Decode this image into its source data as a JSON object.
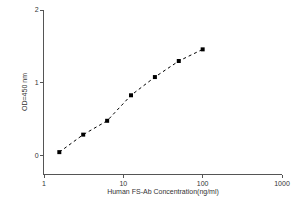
{
  "chart_data": {
    "type": "line",
    "x_label": "Human FS-Ab Concentration(ng/ml)",
    "y_label": "OD=450 nm",
    "x": [
      1.56,
      3.12,
      6.25,
      12.5,
      25,
      50,
      100
    ],
    "values": [
      0.05,
      0.29,
      0.48,
      0.83,
      1.08,
      1.3,
      1.46
    ],
    "color": "#000000",
    "marker": "square",
    "line_style": "dotted",
    "log": "x",
    "xlim": [
      1,
      1000
    ],
    "xticks": [
      1,
      10,
      100,
      1000
    ],
    "ylim": [
      -0.25,
      2
    ],
    "yticks": [
      0,
      1,
      2
    ],
    "grid": false
  }
}
